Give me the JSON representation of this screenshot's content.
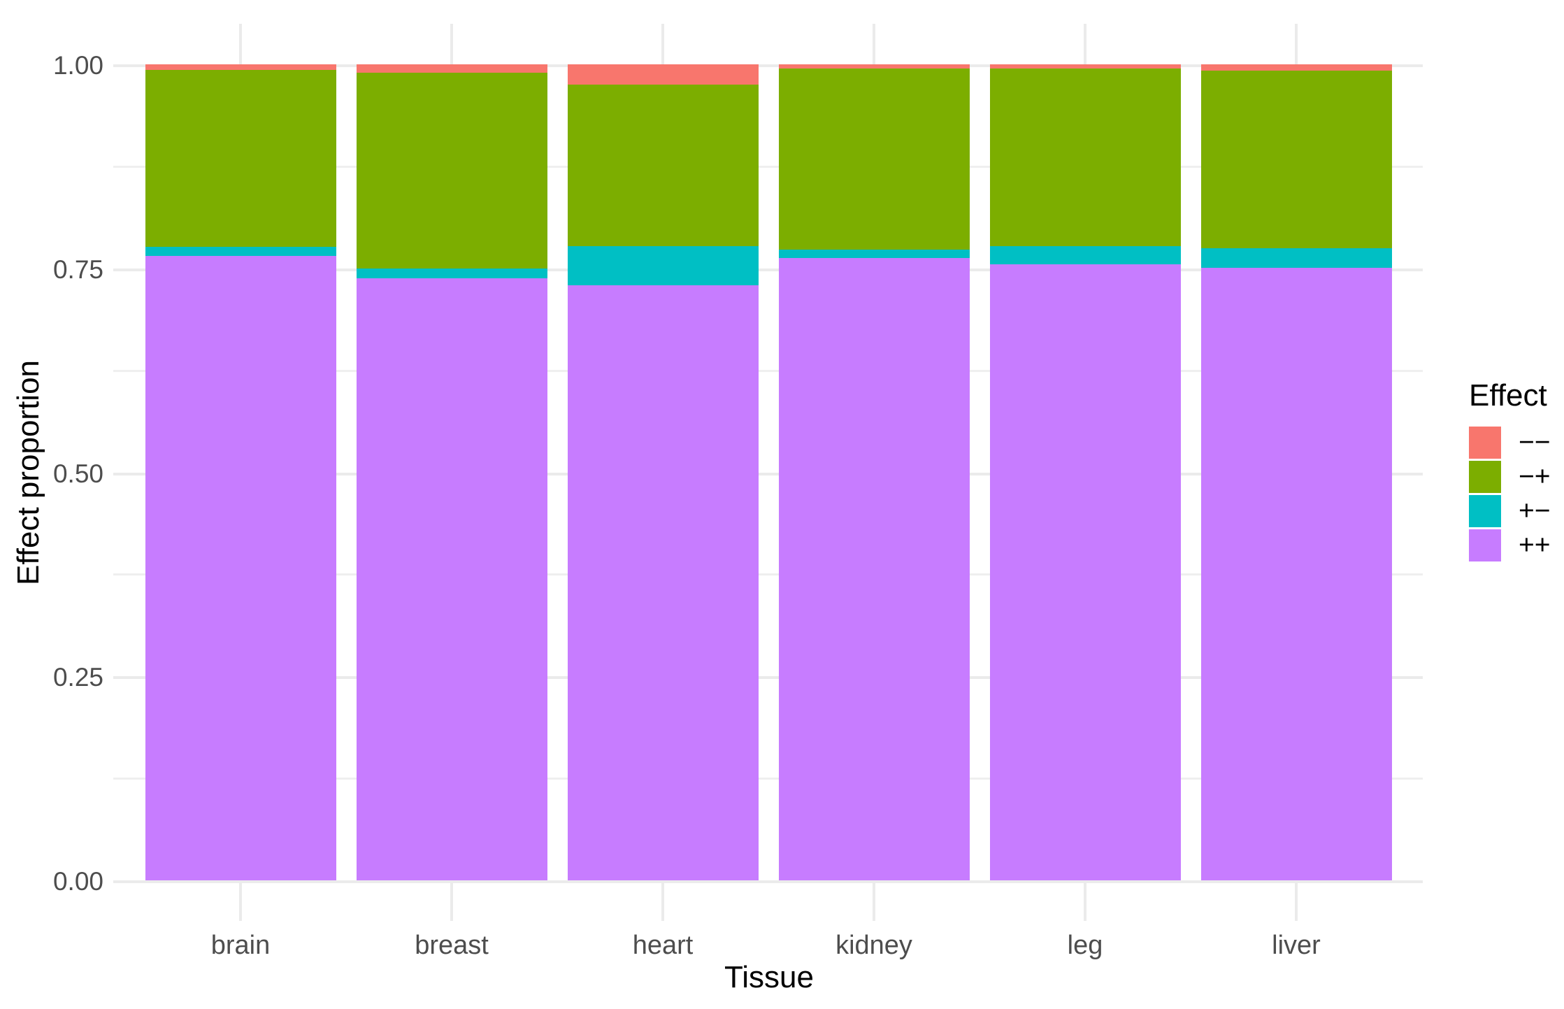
{
  "chart_data": {
    "type": "bar",
    "stacked": true,
    "normalized": true,
    "title": "",
    "xlabel": "Tissue",
    "ylabel": "Effect proportion",
    "legend_title": "Effect",
    "legend_position": "right",
    "grid": true,
    "categories": [
      "brain",
      "breast",
      "heart",
      "kidney",
      "leg",
      "liver"
    ],
    "series": [
      {
        "name": "−−",
        "color": "#F8766D",
        "values": [
          0.007,
          0.01,
          0.025,
          0.005,
          0.005,
          0.008
        ]
      },
      {
        "name": "−+",
        "color": "#7CAE00",
        "values": [
          0.217,
          0.24,
          0.198,
          0.222,
          0.218,
          0.217
        ]
      },
      {
        "name": "+−",
        "color": "#00BFC4",
        "values": [
          0.011,
          0.012,
          0.048,
          0.01,
          0.022,
          0.024
        ]
      },
      {
        "name": "++",
        "color": "#C77CFF",
        "values": [
          0.765,
          0.738,
          0.729,
          0.763,
          0.755,
          0.751
        ]
      }
    ],
    "ylim": [
      0,
      1
    ],
    "y_major_ticks": [
      {
        "label": "1.00",
        "value": 1.0
      },
      {
        "label": "0.75",
        "value": 0.75
      },
      {
        "label": "0.50",
        "value": 0.5
      },
      {
        "label": "0.25",
        "value": 0.25
      },
      {
        "label": "0.00",
        "value": 0.0
      }
    ],
    "y_minor_gridlines": [
      0.875,
      0.625,
      0.375,
      0.125
    ]
  }
}
